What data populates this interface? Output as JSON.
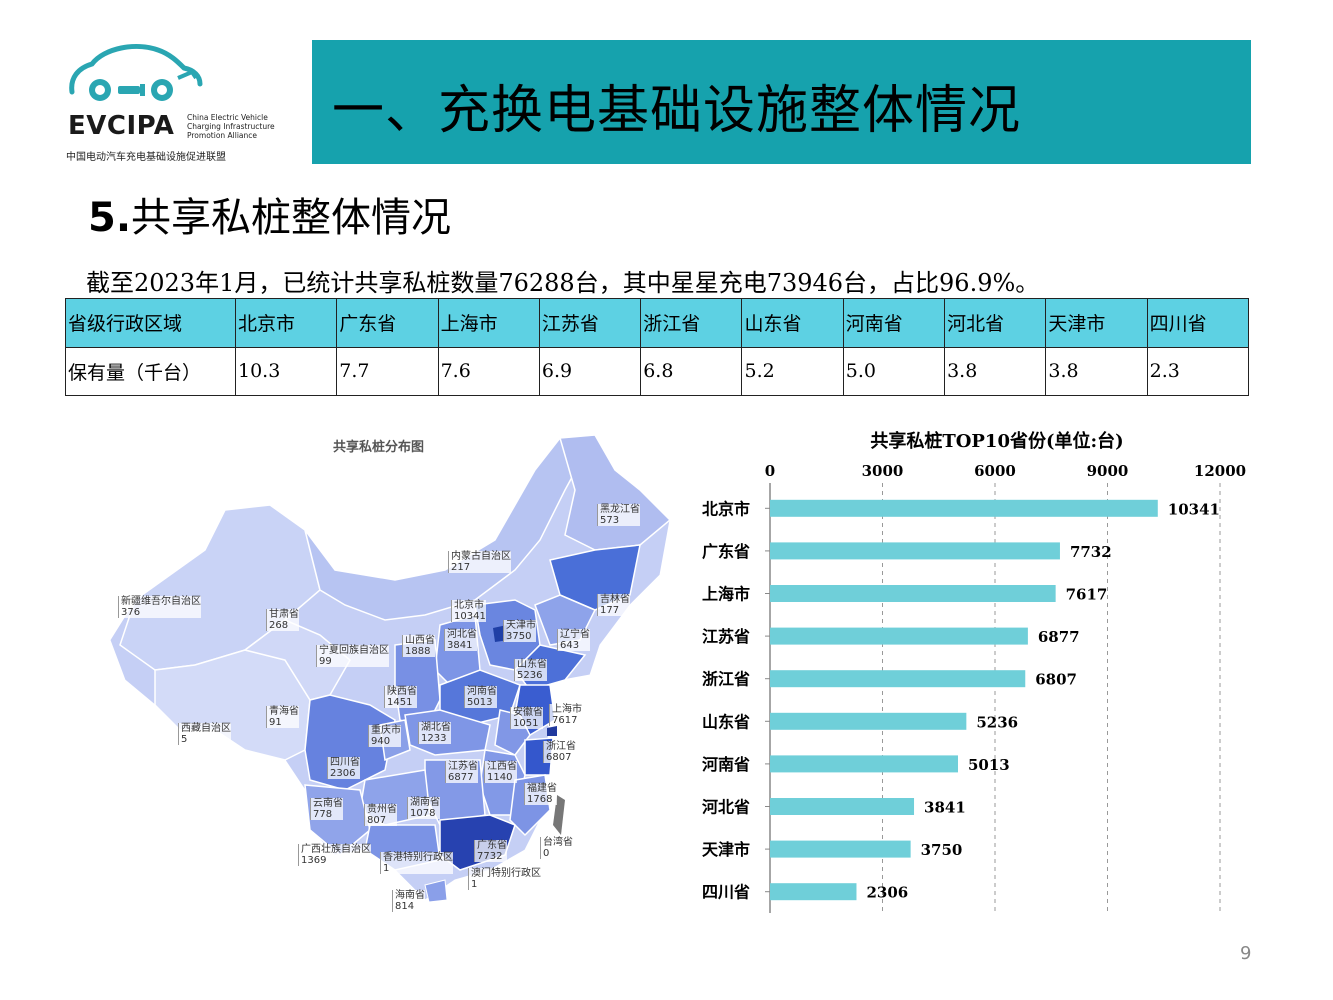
{
  "logo": {
    "name": "EVCIPA",
    "en_line1": "China Electric Vehicle",
    "en_line2": "Charging Infrastructure",
    "en_line3": "Promotion Alliance",
    "cn": "中国电动汽车充电基础设施促进联盟"
  },
  "header": {
    "title": "一、充换电基础设施整体情况"
  },
  "section": {
    "number": "5.",
    "title": "共享私桩整体情况"
  },
  "summary": "截至2023年1月，已统计共享私桩数量76288台，其中星星充电73946台，占比96.9%。",
  "table": {
    "row_header": "省级行政区域",
    "value_header": "保有量（千台）",
    "provinces": [
      "北京市",
      "广东省",
      "上海市",
      "江苏省",
      "浙江省",
      "山东省",
      "河南省",
      "河北省",
      "天津市",
      "四川省"
    ],
    "values": [
      "10.3",
      "7.7",
      "7.6",
      "6.9",
      "6.8",
      "5.2",
      "5.0",
      "3.8",
      "3.8",
      "2.3"
    ]
  },
  "map": {
    "title": "共享私桩分布图",
    "labels": [
      {
        "name": "黑龙江省",
        "value": "573"
      },
      {
        "name": "吉林省",
        "value": "177"
      },
      {
        "name": "内蒙古自治区",
        "value": "217"
      },
      {
        "name": "新疆维吾尔自治区",
        "value": "376"
      },
      {
        "name": "甘肃省",
        "value": "268"
      },
      {
        "name": "北京市",
        "value": "10341"
      },
      {
        "name": "天津市",
        "value": "3750"
      },
      {
        "name": "辽宁省",
        "value": "643"
      },
      {
        "name": "河北省",
        "value": "3841"
      },
      {
        "name": "山西省",
        "value": "1888"
      },
      {
        "name": "宁夏回族自治区",
        "value": "99"
      },
      {
        "name": "山东省",
        "value": "5236"
      },
      {
        "name": "陕西省",
        "value": "1451"
      },
      {
        "name": "河南省",
        "value": "5013"
      },
      {
        "name": "青海省",
        "value": "91"
      },
      {
        "name": "上海市",
        "value": "7617"
      },
      {
        "name": "安徽省",
        "value": "1051"
      },
      {
        "name": "西藏自治区",
        "value": "5"
      },
      {
        "name": "重庆市",
        "value": "940"
      },
      {
        "name": "湖北省",
        "value": "1233"
      },
      {
        "name": "浙江省",
        "value": "6807"
      },
      {
        "name": "四川省",
        "value": "2306"
      },
      {
        "name": "江苏省",
        "value": "6877"
      },
      {
        "name": "江西省",
        "value": "1140"
      },
      {
        "name": "福建省",
        "value": "1768"
      },
      {
        "name": "云南省",
        "value": "778"
      },
      {
        "name": "贵州省",
        "value": "807"
      },
      {
        "name": "湖南省",
        "value": "1078"
      },
      {
        "name": "台湾省",
        "value": "0"
      },
      {
        "name": "广东省",
        "value": "7732"
      },
      {
        "name": "广西壮族自治区",
        "value": "1369"
      },
      {
        "name": "香港特别行政区",
        "value": "1"
      },
      {
        "name": "澳门特别行政区",
        "value": "1"
      },
      {
        "name": "海南省",
        "value": "814"
      }
    ]
  },
  "colors": {
    "banner": "#16a2ad",
    "table_header": "#5dd1e3",
    "bar": "#6fcfd9"
  },
  "chart_data": {
    "type": "bar",
    "orientation": "horizontal",
    "title": "共享私桩TOP10省份(单位:台)",
    "categories": [
      "北京市",
      "广东省",
      "上海市",
      "江苏省",
      "浙江省",
      "山东省",
      "河南省",
      "河北省",
      "天津市",
      "四川省"
    ],
    "values": [
      10341,
      7732,
      7617,
      6877,
      6807,
      5236,
      5013,
      3841,
      3750,
      2306
    ],
    "xlim": [
      0,
      12000
    ],
    "xticks": [
      0,
      3000,
      6000,
      9000,
      12000
    ],
    "axis_position": "top",
    "grid": "vertical dashed"
  },
  "page_number": "9"
}
